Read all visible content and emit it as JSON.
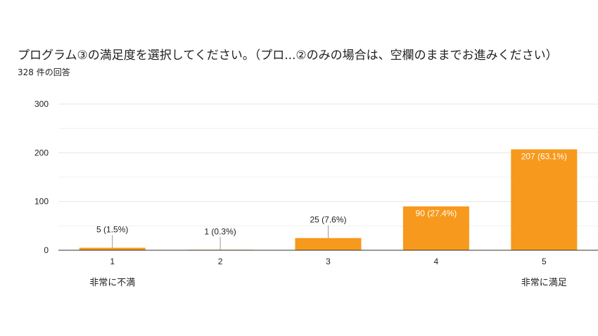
{
  "title": "プログラム③の満足度を選択してください。（プロ...②のみの場合は、空欄のままでお進みください）",
  "subtitle": "328 件の回答",
  "colors": {
    "bar": "#f7991c",
    "grid": "#e6e6e6",
    "axis": "#333333",
    "text": "#222222",
    "inside_label": "#ffffff"
  },
  "chart_data": {
    "type": "bar",
    "categories": [
      "1",
      "2",
      "3",
      "4",
      "5"
    ],
    "values": [
      5,
      1,
      25,
      90,
      207
    ],
    "data_labels": [
      "5 (1.5%)",
      "1 (0.3%)",
      "25 (7.6%)",
      "90 (27.4%)",
      "207 (63.1%)"
    ],
    "yticks": [
      0,
      100,
      200,
      300
    ],
    "ylim": [
      0,
      300
    ],
    "xlabel": "",
    "ylabel": "",
    "scale_labels": {
      "low": "非常に不満",
      "high": "非常に満足"
    },
    "grid": true,
    "legend": "none"
  }
}
